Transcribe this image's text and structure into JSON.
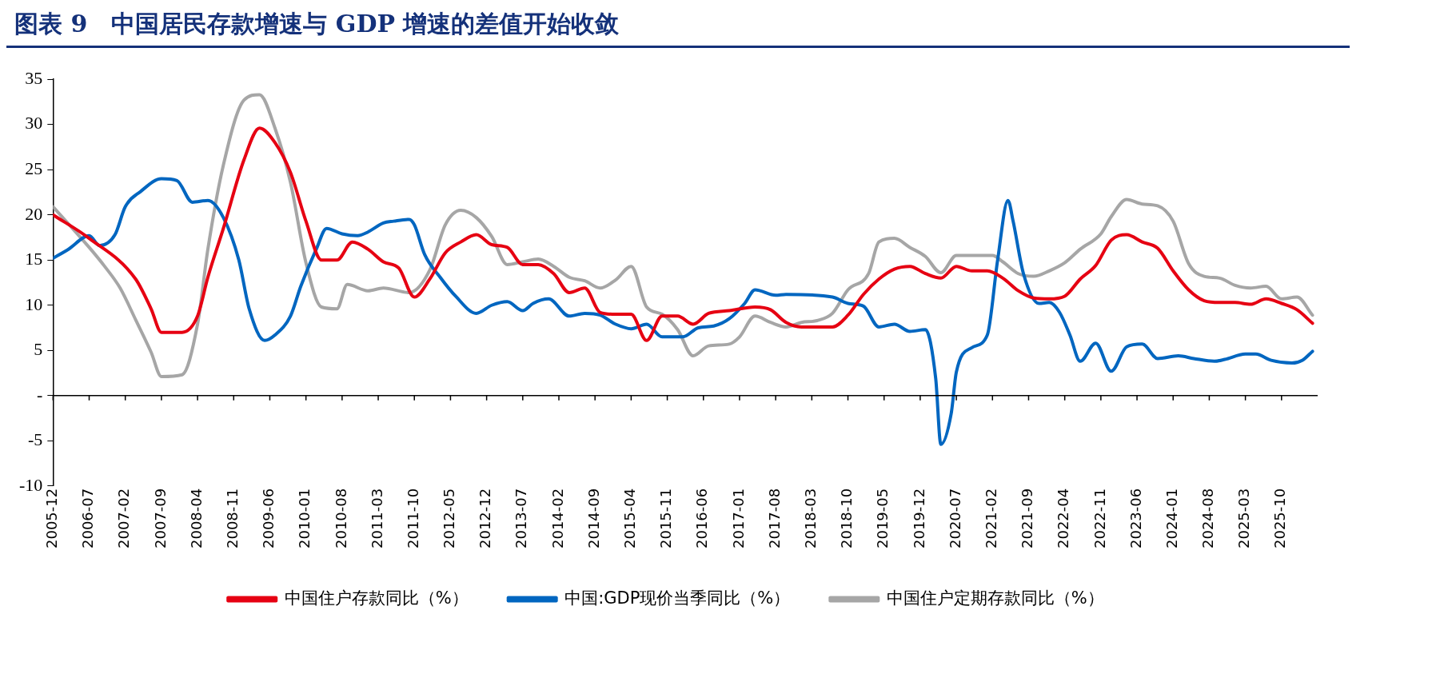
{
  "chart_data": {
    "type": "line",
    "title": "图表 9　中国居民存款增速与 GDP 增速的差值开始收敛",
    "xlim": [
      "2005-12",
      "2026-05"
    ],
    "xticks": [
      "2005-12",
      "2006-07",
      "2007-02",
      "2007-09",
      "2008-04",
      "2008-11",
      "2009-06",
      "2010-01",
      "2010-08",
      "2011-03",
      "2011-10",
      "2012-05",
      "2012-12",
      "2013-07",
      "2014-02",
      "2014-09",
      "2015-04",
      "2015-11",
      "2016-06",
      "2017-01",
      "2017-08",
      "2018-03",
      "2018-10",
      "2019-05",
      "2019-12",
      "2020-07",
      "2021-02",
      "2021-09",
      "2022-04",
      "2022-11",
      "2023-06",
      "2024-01",
      "2024-08",
      "2025-03",
      "2025-10"
    ],
    "ylim": [
      -10,
      35
    ],
    "yticks": [
      -10,
      -5,
      {
        "value": 0,
        "label": "-"
      },
      5,
      10,
      15,
      20,
      25,
      30,
      35
    ],
    "legend": "bottom",
    "series": [
      {
        "name": "中国住户存款同比（%）",
        "color": "#e60012",
        "x": [
          "2005-12",
          "2006-07",
          "2007-04",
          "2007-07",
          "2007-09",
          "2008-01",
          "2008-04",
          "2008-06",
          "2008-09",
          "2009-01",
          "2009-04",
          "2009-07",
          "2009-10",
          "2010-01",
          "2010-04",
          "2010-07",
          "2010-10",
          "2011-01",
          "2011-04",
          "2011-07",
          "2011-10",
          "2012-01",
          "2012-04",
          "2012-07",
          "2012-10",
          "2013-01",
          "2013-04",
          "2013-07",
          "2013-10",
          "2014-01",
          "2014-04",
          "2014-07",
          "2014-10",
          "2015-01",
          "2015-04",
          "2015-07",
          "2015-10",
          "2016-01",
          "2016-04",
          "2016-07",
          "2016-11",
          "2017-04",
          "2017-07",
          "2017-10",
          "2018-01",
          "2018-07",
          "2018-10",
          "2019-01",
          "2019-04",
          "2019-07",
          "2019-10",
          "2020-01",
          "2020-04",
          "2020-07",
          "2020-10",
          "2021-01",
          "2021-04",
          "2021-07",
          "2021-10",
          "2022-01",
          "2022-04",
          "2022-07",
          "2022-10",
          "2023-01",
          "2023-04",
          "2023-07",
          "2023-10",
          "2024-01",
          "2024-04",
          "2024-07",
          "2024-10",
          "2025-01",
          "2025-04",
          "2025-07",
          "2025-10",
          "2026-01",
          "2026-04"
        ],
        "values": [
          20.0,
          17.4,
          12.9,
          9.6,
          7.0,
          7.0,
          8.8,
          13.1,
          18.5,
          26.1,
          29.6,
          28.0,
          24.7,
          19.3,
          15.0,
          15.0,
          17.0,
          16.2,
          14.8,
          14.1,
          10.9,
          12.9,
          15.8,
          17.0,
          17.8,
          16.7,
          16.4,
          14.5,
          14.5,
          13.5,
          11.4,
          11.9,
          9.2,
          9.0,
          9.0,
          6.1,
          8.8,
          8.8,
          7.9,
          9.1,
          9.4,
          9.8,
          9.5,
          8.1,
          7.6,
          7.6,
          8.9,
          11.2,
          12.9,
          14.0,
          14.3,
          13.5,
          13.0,
          14.3,
          13.8,
          13.8,
          13.0,
          11.6,
          10.8,
          10.7,
          11.0,
          12.9,
          14.4,
          17.2,
          17.8,
          17.0,
          16.3,
          13.8,
          11.7,
          10.5,
          10.3,
          10.3,
          10.1,
          10.7,
          10.2,
          9.5,
          8.0
        ]
      },
      {
        "name": "中国:GDP现价当季同比（%）",
        "color": "#0066c0",
        "x": [
          "2005-12",
          "2006-03",
          "2006-07",
          "2006-09",
          "2006-12",
          "2007-02",
          "2007-05",
          "2007-09",
          "2007-12",
          "2008-03",
          "2008-06",
          "2008-09",
          "2008-12",
          "2009-02",
          "2009-05",
          "2009-07",
          "2009-10",
          "2009-12",
          "2010-03",
          "2010-05",
          "2010-08",
          "2010-11",
          "2011-01",
          "2011-04",
          "2011-06",
          "2011-09",
          "2011-10",
          "2011-12",
          "2012-03",
          "2012-06",
          "2012-10",
          "2013-01",
          "2013-04",
          "2013-07",
          "2013-09",
          "2013-12",
          "2014-04",
          "2014-07",
          "2014-10",
          "2015-01",
          "2015-04",
          "2015-07",
          "2015-10",
          "2016-02",
          "2016-05",
          "2016-08",
          "2016-11",
          "2017-02",
          "2017-04",
          "2017-08",
          "2017-10",
          "2018-07",
          "2018-10",
          "2019-01",
          "2019-04",
          "2019-07",
          "2019-10",
          "2020-01",
          "2020-03",
          "2020-04",
          "2020-06",
          "2020-07",
          "2020-10",
          "2021-01",
          "2021-03",
          "2021-05",
          "2021-06",
          "2021-08",
          "2021-11",
          "2022-01",
          "2022-03",
          "2022-05",
          "2022-07",
          "2022-10",
          "2023-01",
          "2023-04",
          "2023-07",
          "2023-10",
          "2024-02",
          "2024-05",
          "2024-09",
          "2024-11",
          "2025-03",
          "2025-05",
          "2025-08",
          "2025-12",
          "2026-02",
          "2026-04"
        ],
        "values": [
          15.2,
          16.2,
          17.7,
          16.6,
          17.8,
          20.9,
          22.6,
          24.0,
          23.8,
          21.4,
          21.6,
          19.7,
          15.0,
          9.6,
          6.1,
          6.7,
          8.8,
          12.1,
          16.2,
          18.5,
          17.9,
          17.7,
          18.1,
          19.1,
          19.3,
          19.5,
          18.9,
          15.6,
          13.1,
          11.0,
          9.1,
          10.0,
          10.4,
          9.4,
          10.2,
          10.7,
          8.8,
          9.1,
          8.9,
          7.9,
          7.4,
          7.9,
          6.5,
          6.5,
          7.5,
          7.7,
          8.5,
          10.2,
          11.7,
          11.1,
          11.2,
          10.9,
          10.2,
          9.9,
          7.6,
          7.9,
          7.1,
          7.3,
          1.9,
          -5.4,
          -2.0,
          2.6,
          5.3,
          6.7,
          15.0,
          21.6,
          19.3,
          13.5,
          10.2,
          10.3,
          9.2,
          6.7,
          3.8,
          5.8,
          2.7,
          5.4,
          5.7,
          4.1,
          4.4,
          4.1,
          3.8,
          4.0,
          4.6,
          4.6,
          3.9,
          3.6,
          3.9,
          4.9
        ]
      },
      {
        "name": "中国住户定期存款同比（%）",
        "color": "#a6a6a6",
        "x": [
          "2005-12",
          "2006-07",
          "2006-10",
          "2007-01",
          "2007-04",
          "2007-07",
          "2007-09",
          "2008-01",
          "2008-04",
          "2008-06",
          "2008-09",
          "2009-01",
          "2009-04",
          "2009-07",
          "2009-10",
          "2010-01",
          "2010-04",
          "2010-07",
          "2010-09",
          "2011-01",
          "2011-04",
          "2011-09",
          "2012-01",
          "2012-04",
          "2012-07",
          "2012-10",
          "2013-01",
          "2013-04",
          "2013-07",
          "2013-10",
          "2014-01",
          "2014-04",
          "2014-07",
          "2014-10",
          "2015-01",
          "2015-04",
          "2015-07",
          "2015-10",
          "2016-01",
          "2016-04",
          "2016-07",
          "2016-11",
          "2017-01",
          "2017-04",
          "2017-07",
          "2017-10",
          "2018-01",
          "2018-04",
          "2018-07",
          "2018-10",
          "2019-02",
          "2019-04",
          "2019-07",
          "2019-10",
          "2020-01",
          "2020-04",
          "2020-07",
          "2021-02",
          "2021-04",
          "2021-07",
          "2021-10",
          "2022-01",
          "2022-04",
          "2022-07",
          "2022-11",
          "2023-01",
          "2023-04",
          "2023-07",
          "2023-10",
          "2024-01",
          "2024-04",
          "2024-07",
          "2024-10",
          "2025-01",
          "2025-04",
          "2025-07",
          "2025-10",
          "2026-01",
          "2026-04"
        ],
        "values": [
          20.9,
          16.4,
          14.3,
          11.9,
          8.4,
          4.8,
          2.1,
          2.3,
          7.9,
          16.2,
          25.5,
          32.7,
          33.3,
          29.6,
          23.6,
          14.7,
          9.8,
          9.6,
          12.3,
          11.6,
          11.9,
          11.4,
          13.9,
          18.9,
          20.5,
          19.7,
          17.6,
          14.5,
          14.8,
          15.1,
          14.3,
          13.1,
          12.7,
          11.9,
          12.8,
          14.3,
          9.8,
          9.0,
          7.3,
          4.4,
          5.5,
          5.7,
          6.5,
          8.8,
          8.1,
          7.6,
          8.1,
          8.3,
          9.1,
          11.7,
          13.5,
          17.0,
          17.4,
          16.4,
          15.4,
          13.6,
          15.5,
          15.5,
          14.8,
          13.5,
          13.2,
          13.8,
          14.7,
          16.2,
          17.9,
          19.8,
          21.7,
          21.2,
          21.0,
          19.3,
          14.6,
          13.2,
          13.0,
          12.2,
          11.9,
          12.1,
          10.7,
          10.9,
          8.9
        ]
      }
    ]
  }
}
